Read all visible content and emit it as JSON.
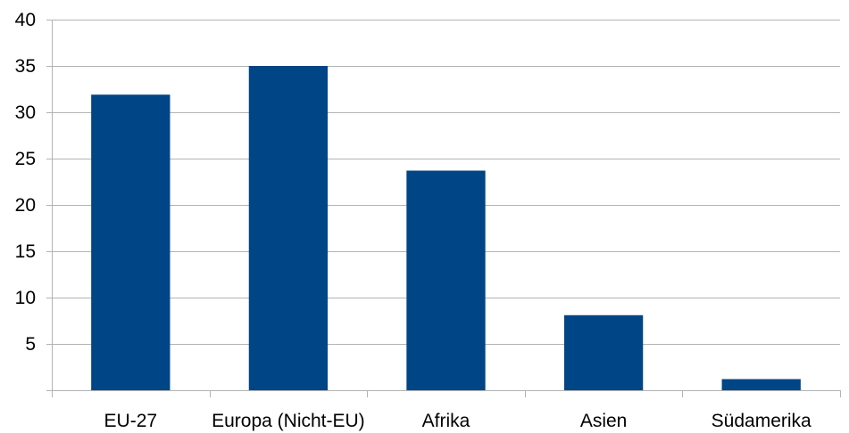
{
  "chart_data": {
    "type": "bar",
    "categories": [
      "EU-27",
      "Europa (Nicht-EU)",
      "Afrika",
      "Asien",
      "Südamerika"
    ],
    "series": [
      {
        "values": [
          31.9,
          35.0,
          23.7,
          8.1,
          1.2
        ]
      }
    ],
    "title": "",
    "xlabel": "",
    "ylabel": "",
    "ylim": [
      0,
      40
    ],
    "yticks": [
      5,
      10,
      15,
      20,
      25,
      30,
      35,
      40
    ],
    "grid": true,
    "legend": "none",
    "bar_color": "#004586",
    "grid_color": "#b3b3b3"
  }
}
